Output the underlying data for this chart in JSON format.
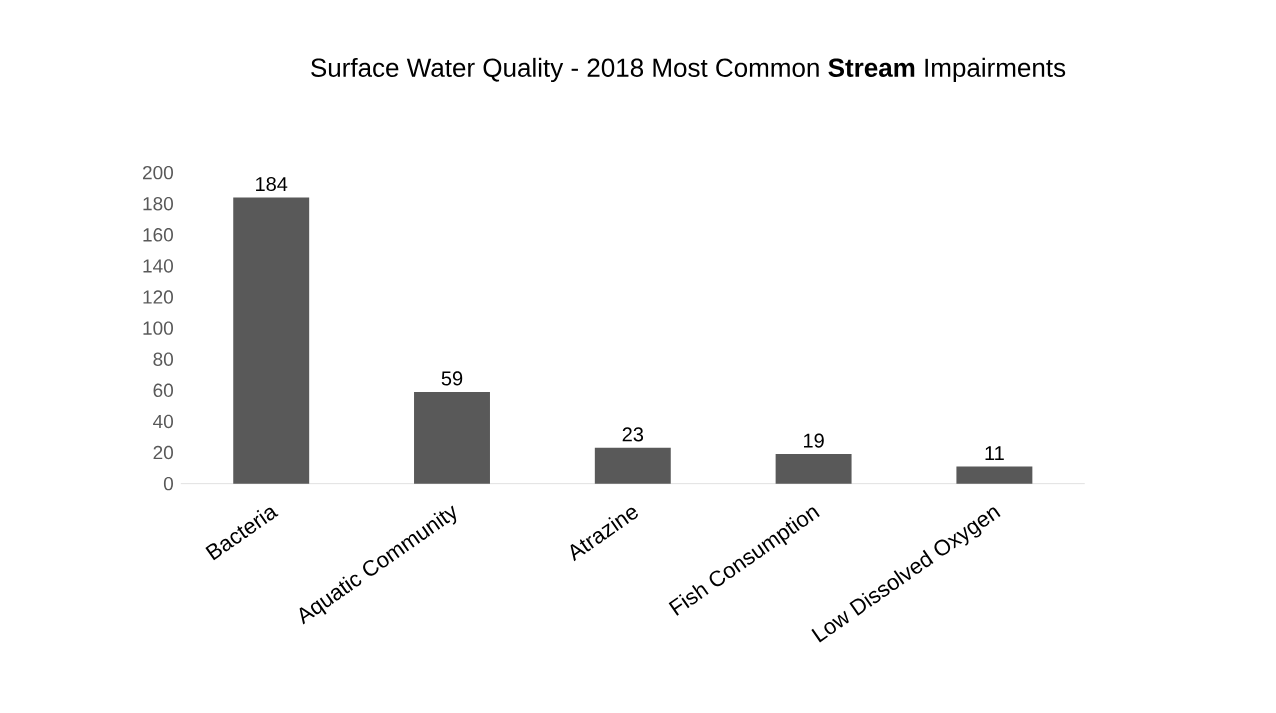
{
  "chart_data": {
    "type": "bar",
    "title": "Surface Water Quality - 2018 Most Common **Stream** Impairments",
    "categories": [
      "Bacteria",
      "Aquatic Community",
      "Atrazine",
      "Fish Consumption",
      "Low Dissolved Oxygen"
    ],
    "values": [
      184,
      59,
      23,
      19,
      11
    ],
    "color": "#595959",
    "ylim": [
      0,
      200
    ],
    "yticks": [
      0,
      20,
      40,
      60,
      80,
      100,
      120,
      140,
      160,
      180,
      200
    ],
    "grid": false,
    "data_labels": true
  }
}
